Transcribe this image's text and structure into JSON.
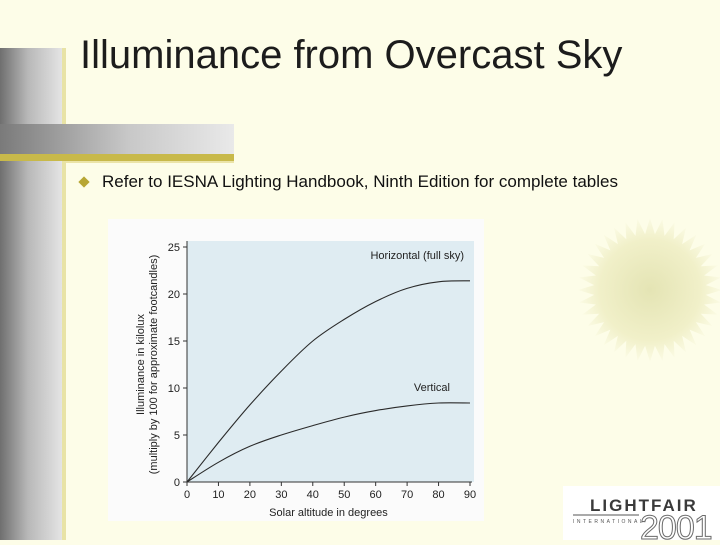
{
  "slide": {
    "title": "Illuminance from Overcast Sky",
    "bullet": "Refer to IESNA Lighting Handbook, Ninth Edition for complete tables"
  },
  "logo": {
    "name": "LIGHTFAIR",
    "subtitle": "INTERNATIONAL",
    "year": "2001"
  },
  "colors": {
    "accent": "#c8b94a",
    "plot_bg": "#dfecf2",
    "curve": "#2a2a2a"
  },
  "chart_data": {
    "type": "line",
    "xlabel": "Solar altitude in degrees",
    "ylabel": "Illuminance in kilolux",
    "ylabel2": "(multiply by 100 for approximate footcandles)",
    "xlim": [
      0,
      90
    ],
    "ylim": [
      0,
      25
    ],
    "xticks": [
      0,
      10,
      20,
      30,
      40,
      50,
      60,
      70,
      80,
      90
    ],
    "yticks": [
      0,
      5,
      10,
      15,
      20,
      25
    ],
    "grid": false,
    "series": [
      {
        "name": "Horizontal (full sky)",
        "x": [
          0,
          10,
          20,
          30,
          40,
          50,
          60,
          70,
          80,
          90
        ],
        "y": [
          0,
          4.2,
          8.2,
          11.8,
          15.0,
          17.3,
          19.2,
          20.6,
          21.3,
          21.4
        ]
      },
      {
        "name": "Vertical",
        "x": [
          0,
          10,
          20,
          30,
          40,
          50,
          60,
          70,
          80,
          90
        ],
        "y": [
          0,
          2.1,
          3.8,
          5.0,
          6.0,
          6.9,
          7.6,
          8.1,
          8.4,
          8.4
        ]
      }
    ]
  }
}
